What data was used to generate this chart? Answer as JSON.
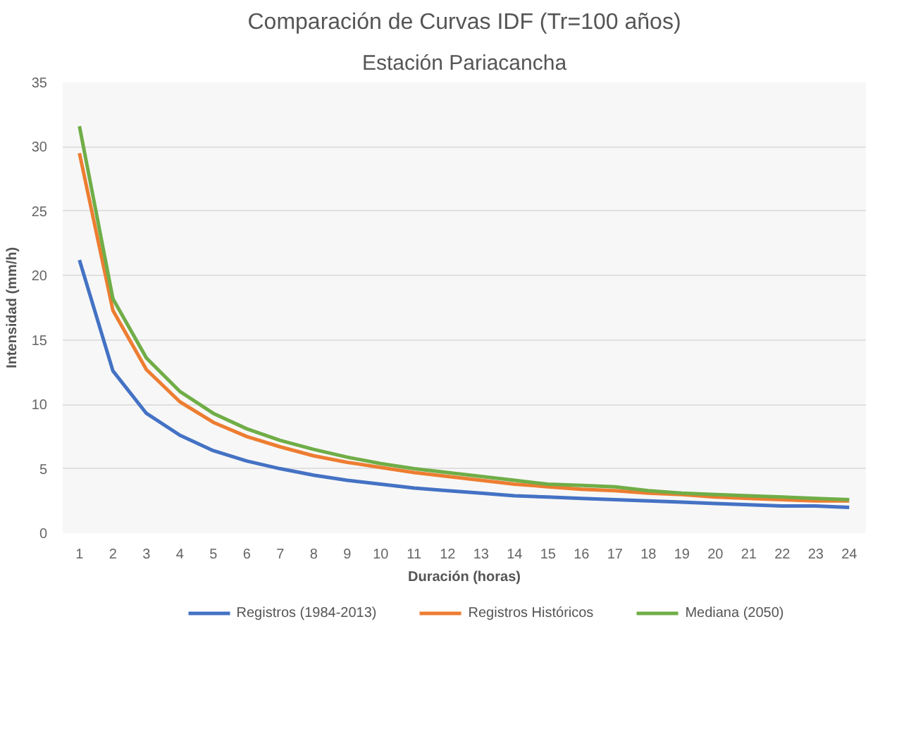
{
  "chart_data": {
    "type": "line",
    "title": "Comparación de Curvas IDF (Tr=100 años)",
    "subtitle": "Estación Pariacancha",
    "xlabel": "Duración (horas)",
    "ylabel": "Intensidad (mm/h)",
    "x": [
      1,
      2,
      3,
      4,
      5,
      6,
      7,
      8,
      9,
      10,
      11,
      12,
      13,
      14,
      15,
      16,
      17,
      18,
      19,
      20,
      21,
      22,
      23,
      24
    ],
    "xlim": [
      0.5,
      24.5
    ],
    "xticks": [
      1,
      2,
      3,
      4,
      5,
      6,
      7,
      8,
      9,
      10,
      11,
      12,
      13,
      14,
      15,
      16,
      17,
      18,
      19,
      20,
      21,
      22,
      23,
      24
    ],
    "ylim": [
      0,
      35
    ],
    "yticks": [
      0,
      5,
      10,
      15,
      20,
      25,
      30,
      35
    ],
    "grid": "y",
    "legend": "bottom",
    "marker": "none",
    "line_style": "solid",
    "series": [
      {
        "name": "Registros (1984-2013)",
        "color": "#4472c4",
        "values": [
          21.2,
          12.6,
          9.3,
          7.6,
          6.4,
          5.6,
          5.0,
          4.5,
          4.1,
          3.8,
          3.5,
          3.3,
          3.1,
          2.9,
          2.8,
          2.7,
          2.6,
          2.5,
          2.4,
          2.3,
          2.2,
          2.1,
          2.1,
          2.0
        ]
      },
      {
        "name": "Registros Históricos",
        "color": "#ed7d31",
        "values": [
          29.5,
          17.3,
          12.7,
          10.2,
          8.6,
          7.5,
          6.7,
          6.0,
          5.5,
          5.1,
          4.7,
          4.4,
          4.1,
          3.8,
          3.6,
          3.4,
          3.3,
          3.1,
          3.0,
          2.8,
          2.7,
          2.6,
          2.5,
          2.5
        ]
      },
      {
        "name": "Mediana (2050)",
        "color": "#70ad47",
        "values": [
          31.6,
          18.2,
          13.6,
          11.0,
          9.3,
          8.1,
          7.2,
          6.5,
          5.9,
          5.4,
          5.0,
          4.7,
          4.4,
          4.1,
          3.8,
          3.7,
          3.6,
          3.3,
          3.1,
          3.0,
          2.9,
          2.8,
          2.7,
          2.6
        ]
      }
    ]
  }
}
